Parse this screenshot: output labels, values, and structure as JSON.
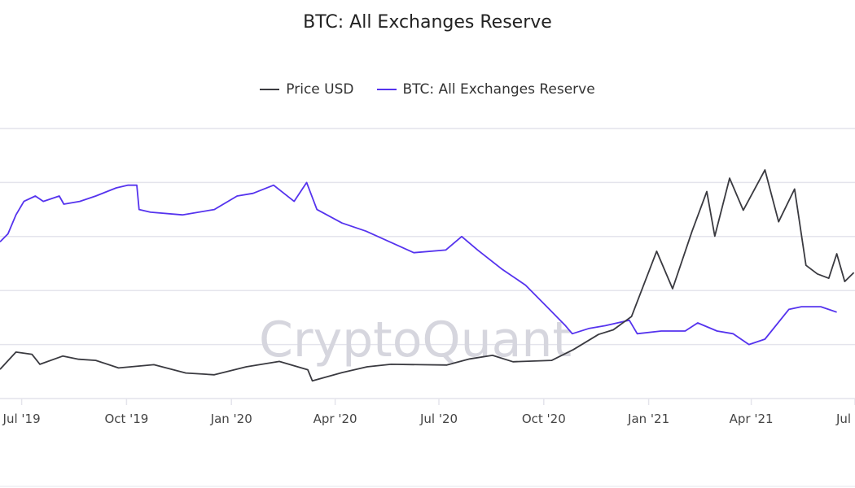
{
  "chart_data": {
    "type": "line",
    "title": "BTC: All Exchanges Reserve",
    "watermark": "CryptoQuant",
    "legend_placement": "top-center",
    "grid": true,
    "x_range": [
      "2019-06-12",
      "2021-07-01"
    ],
    "x_ticks": [
      {
        "date": "2019-07-01",
        "label": "Jul '19"
      },
      {
        "date": "2019-10-01",
        "label": "Oct '19"
      },
      {
        "date": "2020-01-01",
        "label": "Jan '20"
      },
      {
        "date": "2020-04-01",
        "label": "Apr '20"
      },
      {
        "date": "2020-07-01",
        "label": "Jul '20"
      },
      {
        "date": "2020-10-01",
        "label": "Oct '20"
      },
      {
        "date": "2021-01-01",
        "label": "Jan '21"
      },
      {
        "date": "2021-04-01",
        "label": "Apr '21"
      },
      {
        "date": "2021-07-01",
        "label": "Jul '21"
      }
    ],
    "series": [
      {
        "name": "Price USD",
        "color": "#3a3a40",
        "axis": "left",
        "ylim": [
          0,
          75000
        ],
        "points": [
          [
            "2019-06-12",
            8100
          ],
          [
            "2019-06-26",
            12900
          ],
          [
            "2019-07-10",
            12300
          ],
          [
            "2019-07-17",
            9500
          ],
          [
            "2019-08-06",
            11800
          ],
          [
            "2019-08-20",
            10900
          ],
          [
            "2019-09-04",
            10600
          ],
          [
            "2019-09-24",
            8500
          ],
          [
            "2019-10-25",
            9400
          ],
          [
            "2019-11-22",
            7100
          ],
          [
            "2019-12-17",
            6600
          ],
          [
            "2020-01-14",
            8800
          ],
          [
            "2020-02-12",
            10300
          ],
          [
            "2020-03-08",
            8000
          ],
          [
            "2020-03-12",
            4900
          ],
          [
            "2020-04-07",
            7200
          ],
          [
            "2020-04-29",
            8800
          ],
          [
            "2020-05-20",
            9500
          ],
          [
            "2020-06-15",
            9400
          ],
          [
            "2020-07-08",
            9300
          ],
          [
            "2020-07-28",
            11000
          ],
          [
            "2020-08-17",
            12000
          ],
          [
            "2020-09-04",
            10200
          ],
          [
            "2020-10-08",
            10600
          ],
          [
            "2020-10-27",
            13600
          ],
          [
            "2020-11-18",
            17800
          ],
          [
            "2020-12-01",
            19100
          ],
          [
            "2020-12-17",
            22800
          ],
          [
            "2021-01-08",
            40900
          ],
          [
            "2021-01-22",
            30500
          ],
          [
            "2021-02-08",
            46400
          ],
          [
            "2021-02-21",
            57500
          ],
          [
            "2021-02-28",
            45100
          ],
          [
            "2021-03-13",
            61200
          ],
          [
            "2021-03-25",
            52300
          ],
          [
            "2021-04-13",
            63500
          ],
          [
            "2021-04-25",
            49100
          ],
          [
            "2021-05-09",
            58200
          ],
          [
            "2021-05-19",
            37000
          ],
          [
            "2021-05-29",
            34600
          ],
          [
            "2021-06-08",
            33400
          ],
          [
            "2021-06-15",
            40200
          ],
          [
            "2021-06-22",
            32500
          ],
          [
            "2021-06-30",
            35000
          ]
        ]
      },
      {
        "name": "BTC: All Exchanges Reserve",
        "color": "#5533ee",
        "axis": "right",
        "ylim": [
          2200000,
          3200000
        ],
        "points": [
          [
            "2019-06-12",
            2780000
          ],
          [
            "2019-06-19",
            2810000
          ],
          [
            "2019-06-26",
            2880000
          ],
          [
            "2019-07-03",
            2930000
          ],
          [
            "2019-07-13",
            2950000
          ],
          [
            "2019-07-20",
            2930000
          ],
          [
            "2019-08-03",
            2950000
          ],
          [
            "2019-08-07",
            2920000
          ],
          [
            "2019-08-21",
            2930000
          ],
          [
            "2019-09-04",
            2950000
          ],
          [
            "2019-09-22",
            2980000
          ],
          [
            "2019-10-02",
            2990000
          ],
          [
            "2019-10-10",
            2990000
          ],
          [
            "2019-10-12",
            2900000
          ],
          [
            "2019-10-22",
            2890000
          ],
          [
            "2019-11-19",
            2880000
          ],
          [
            "2019-12-17",
            2900000
          ],
          [
            "2020-01-06",
            2950000
          ],
          [
            "2020-01-20",
            2960000
          ],
          [
            "2020-02-07",
            2990000
          ],
          [
            "2020-02-25",
            2930000
          ],
          [
            "2020-03-07",
            3000000
          ],
          [
            "2020-03-16",
            2900000
          ],
          [
            "2020-04-07",
            2850000
          ],
          [
            "2020-04-28",
            2820000
          ],
          [
            "2020-05-19",
            2780000
          ],
          [
            "2020-06-09",
            2740000
          ],
          [
            "2020-07-07",
            2750000
          ],
          [
            "2020-07-21",
            2800000
          ],
          [
            "2020-08-04",
            2750000
          ],
          [
            "2020-08-25",
            2680000
          ],
          [
            "2020-09-15",
            2620000
          ],
          [
            "2020-10-06",
            2530000
          ],
          [
            "2020-10-20",
            2470000
          ],
          [
            "2020-10-26",
            2440000
          ],
          [
            "2020-11-10",
            2460000
          ],
          [
            "2020-11-24",
            2470000
          ],
          [
            "2020-12-15",
            2490000
          ],
          [
            "2020-12-22",
            2440000
          ],
          [
            "2021-01-12",
            2450000
          ],
          [
            "2021-02-02",
            2450000
          ],
          [
            "2021-02-13",
            2480000
          ],
          [
            "2021-03-02",
            2450000
          ],
          [
            "2021-03-16",
            2440000
          ],
          [
            "2021-03-30",
            2400000
          ],
          [
            "2021-04-13",
            2420000
          ],
          [
            "2021-05-04",
            2530000
          ],
          [
            "2021-05-15",
            2540000
          ],
          [
            "2021-06-01",
            2540000
          ],
          [
            "2021-06-15",
            2520000
          ]
        ]
      }
    ]
  }
}
